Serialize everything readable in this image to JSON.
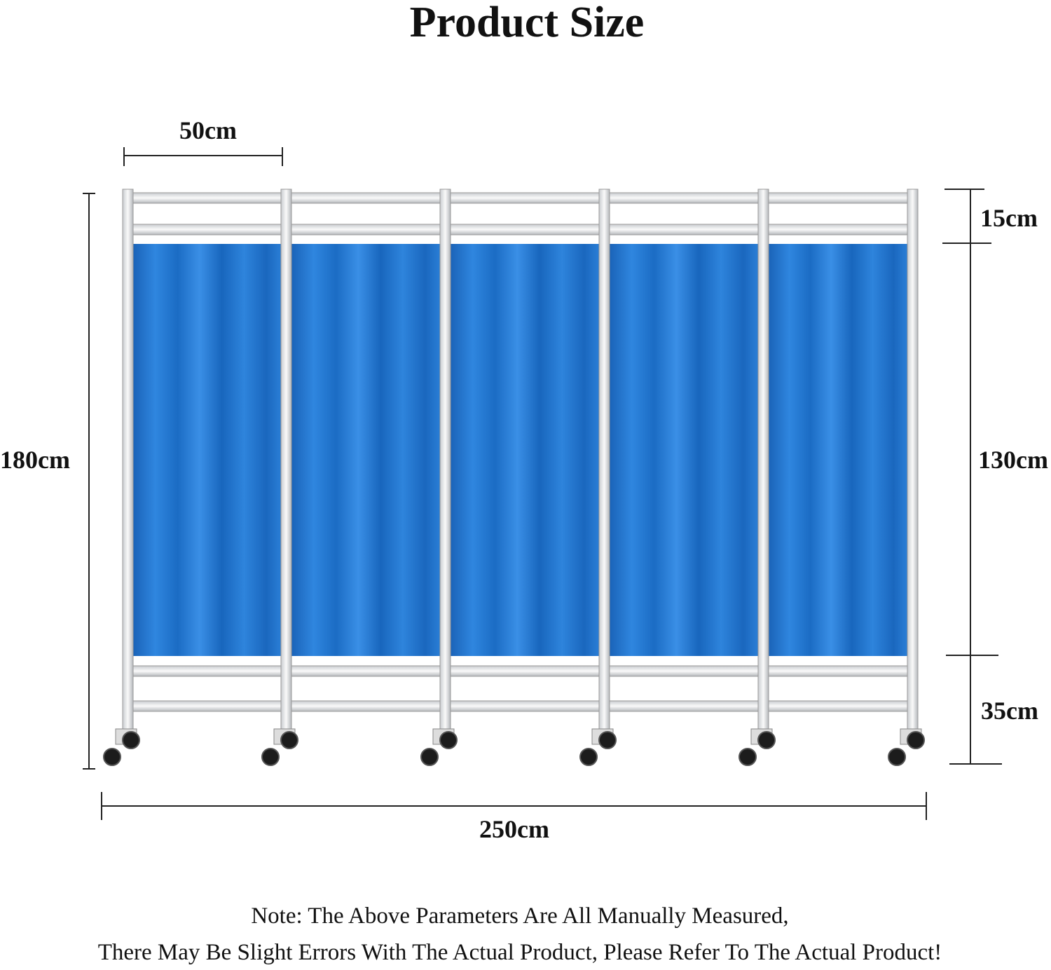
{
  "header": {
    "title": "Product Size"
  },
  "dimensions": {
    "panel_width": "50cm",
    "total_height": "180cm",
    "top_section": "15cm",
    "curtain_height": "130cm",
    "bottom_section": "35cm",
    "total_width": "250cm"
  },
  "note": [
    "Note: The Above Parameters Are All Manually Measured,",
    "There May Be Slight Errors With The Actual Product, Please Refer To The Actual Product!"
  ]
}
